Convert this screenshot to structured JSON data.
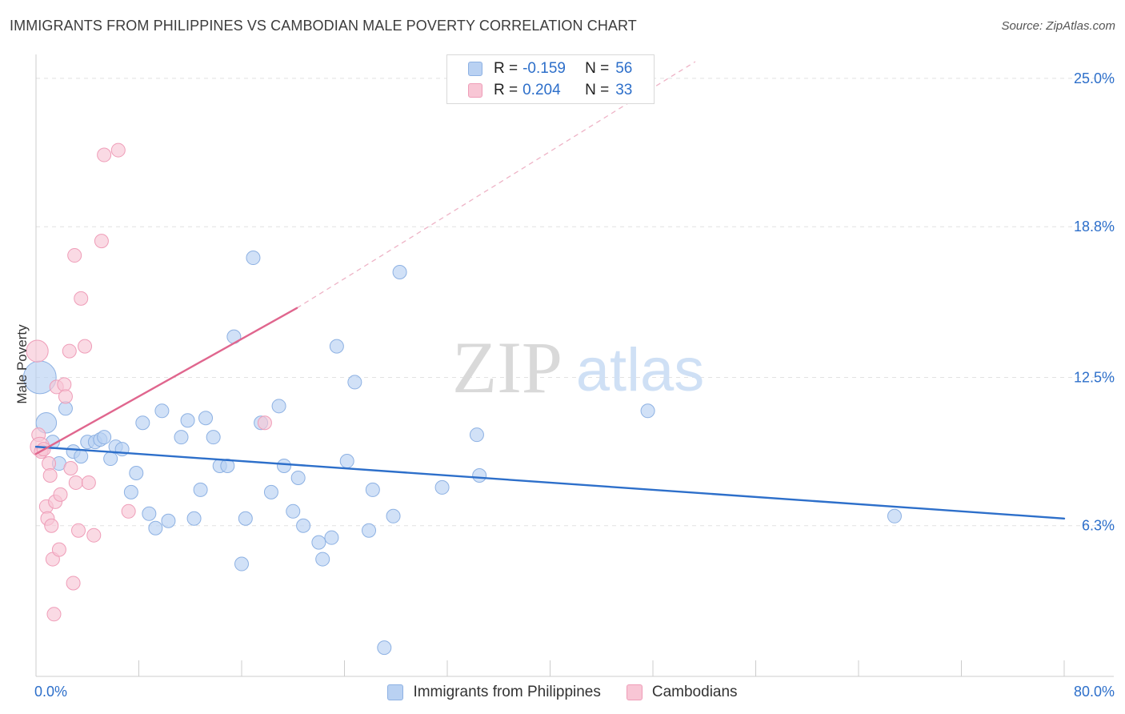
{
  "header": {
    "title": "IMMIGRANTS FROM PHILIPPINES VS CAMBODIAN MALE POVERTY CORRELATION CHART",
    "source": "Source: ZipAtlas.com"
  },
  "watermark": {
    "zip": "ZIP",
    "atlas": "atlas"
  },
  "legend": {
    "r_label": "R =",
    "n_label": "N =",
    "rows": [
      {
        "r": "-0.159",
        "n": "56"
      },
      {
        "r": "0.204",
        "n": "33"
      }
    ]
  },
  "colors": {
    "blue_fill": "#b9d1f2",
    "blue_stroke": "#8db1e3",
    "blue_line": "#2d6fca",
    "pink_fill": "#f8c6d5",
    "pink_stroke": "#ef9db8",
    "pink_line": "#e0668e",
    "axis_label": "#2d6fca",
    "grid": "#e2e2e2"
  },
  "chart_data": {
    "type": "scatter",
    "title": "IMMIGRANTS FROM PHILIPPINES VS CAMBODIAN MALE POVERTY CORRELATION CHART",
    "xlabel": "",
    "ylabel": "Male Poverty",
    "xlim": [
      0,
      80
    ],
    "ylim": [
      0,
      25.7
    ],
    "x_tick_labels": [
      "0.0%",
      "80.0%"
    ],
    "y_ticks": [
      6.3,
      12.5,
      18.8,
      25.0
    ],
    "y_tick_labels": [
      "6.3%",
      "12.5%",
      "18.8%",
      "25.0%"
    ],
    "grid": true,
    "legend_position": "bottom-center",
    "series": [
      {
        "name": "Immigrants from Philippines",
        "r": -0.159,
        "n": 56,
        "trend": {
          "x": [
            0,
            80
          ],
          "y": [
            9.6,
            6.6
          ]
        },
        "points": [
          {
            "x": 0.3,
            "y": 12.5,
            "s": 2.4
          },
          {
            "x": 0.8,
            "y": 10.6,
            "s": 1.5
          },
          {
            "x": 1.3,
            "y": 9.8,
            "s": 1
          },
          {
            "x": 1.8,
            "y": 8.9,
            "s": 1
          },
          {
            "x": 2.3,
            "y": 11.2,
            "s": 1
          },
          {
            "x": 2.9,
            "y": 9.4,
            "s": 1
          },
          {
            "x": 3.5,
            "y": 9.2,
            "s": 1
          },
          {
            "x": 4,
            "y": 9.8,
            "s": 1
          },
          {
            "x": 4.6,
            "y": 9.8,
            "s": 1
          },
          {
            "x": 5,
            "y": 9.9,
            "s": 1
          },
          {
            "x": 5.3,
            "y": 10,
            "s": 1
          },
          {
            "x": 5.8,
            "y": 9.1,
            "s": 1
          },
          {
            "x": 6.2,
            "y": 9.6,
            "s": 1
          },
          {
            "x": 6.7,
            "y": 9.5,
            "s": 1
          },
          {
            "x": 7.4,
            "y": 7.7,
            "s": 1
          },
          {
            "x": 7.8,
            "y": 8.5,
            "s": 1
          },
          {
            "x": 8.3,
            "y": 10.6,
            "s": 1
          },
          {
            "x": 8.8,
            "y": 6.8,
            "s": 1
          },
          {
            "x": 9.3,
            "y": 6.2,
            "s": 1
          },
          {
            "x": 9.8,
            "y": 11.1,
            "s": 1
          },
          {
            "x": 10.3,
            "y": 6.5,
            "s": 1
          },
          {
            "x": 11.3,
            "y": 10,
            "s": 1
          },
          {
            "x": 11.8,
            "y": 10.7,
            "s": 1
          },
          {
            "x": 12.3,
            "y": 6.6,
            "s": 1
          },
          {
            "x": 12.8,
            "y": 7.8,
            "s": 1
          },
          {
            "x": 13.2,
            "y": 10.8,
            "s": 1
          },
          {
            "x": 13.8,
            "y": 10,
            "s": 1
          },
          {
            "x": 14.3,
            "y": 8.8,
            "s": 1
          },
          {
            "x": 14.9,
            "y": 8.8,
            "s": 1
          },
          {
            "x": 15.4,
            "y": 14.2,
            "s": 1
          },
          {
            "x": 16,
            "y": 4.7,
            "s": 1
          },
          {
            "x": 16.3,
            "y": 6.6,
            "s": 1
          },
          {
            "x": 16.9,
            "y": 17.5,
            "s": 1
          },
          {
            "x": 17.5,
            "y": 10.6,
            "s": 1
          },
          {
            "x": 18.3,
            "y": 7.7,
            "s": 1
          },
          {
            "x": 18.9,
            "y": 11.3,
            "s": 1
          },
          {
            "x": 19.3,
            "y": 8.8,
            "s": 1
          },
          {
            "x": 20,
            "y": 6.9,
            "s": 1
          },
          {
            "x": 20.4,
            "y": 8.3,
            "s": 1
          },
          {
            "x": 20.8,
            "y": 6.3,
            "s": 1
          },
          {
            "x": 22,
            "y": 5.6,
            "s": 1
          },
          {
            "x": 22.3,
            "y": 4.9,
            "s": 1
          },
          {
            "x": 23,
            "y": 5.8,
            "s": 1
          },
          {
            "x": 23.4,
            "y": 13.8,
            "s": 1
          },
          {
            "x": 24.2,
            "y": 9,
            "s": 1
          },
          {
            "x": 24.8,
            "y": 12.3,
            "s": 1
          },
          {
            "x": 25.9,
            "y": 6.1,
            "s": 1
          },
          {
            "x": 26.2,
            "y": 7.8,
            "s": 1
          },
          {
            "x": 27.1,
            "y": 1.2,
            "s": 1
          },
          {
            "x": 27.8,
            "y": 6.7,
            "s": 1
          },
          {
            "x": 28.3,
            "y": 16.9,
            "s": 1
          },
          {
            "x": 31.6,
            "y": 7.9,
            "s": 1
          },
          {
            "x": 34.3,
            "y": 10.1,
            "s": 1
          },
          {
            "x": 34.5,
            "y": 8.4,
            "s": 1
          },
          {
            "x": 47.6,
            "y": 11.1,
            "s": 1
          },
          {
            "x": 66.8,
            "y": 6.7,
            "s": 1
          }
        ]
      },
      {
        "name": "Cambodians",
        "r": 0.204,
        "n": 33,
        "trend": {
          "x": [
            0,
            20.3
          ],
          "y": [
            9.3,
            15.4
          ],
          "dashed_to": {
            "x": 51.3,
            "y": 25.7
          }
        },
        "points": [
          {
            "x": 0.1,
            "y": 13.6,
            "s": 1.6
          },
          {
            "x": 0.2,
            "y": 10.1,
            "s": 1
          },
          {
            "x": 0.3,
            "y": 9.6,
            "s": 1.4
          },
          {
            "x": 0.4,
            "y": 9.4,
            "s": 1
          },
          {
            "x": 0.6,
            "y": 9.5,
            "s": 1
          },
          {
            "x": 0.8,
            "y": 7.1,
            "s": 1
          },
          {
            "x": 0.9,
            "y": 6.6,
            "s": 1
          },
          {
            "x": 1,
            "y": 8.9,
            "s": 1
          },
          {
            "x": 1.1,
            "y": 8.4,
            "s": 1
          },
          {
            "x": 1.2,
            "y": 6.3,
            "s": 1
          },
          {
            "x": 1.3,
            "y": 4.9,
            "s": 1
          },
          {
            "x": 1.4,
            "y": 2.6,
            "s": 1
          },
          {
            "x": 1.5,
            "y": 7.3,
            "s": 1
          },
          {
            "x": 1.6,
            "y": 12.1,
            "s": 1
          },
          {
            "x": 1.8,
            "y": 5.3,
            "s": 1
          },
          {
            "x": 1.9,
            "y": 7.6,
            "s": 1
          },
          {
            "x": 2.2,
            "y": 12.2,
            "s": 1
          },
          {
            "x": 2.3,
            "y": 11.7,
            "s": 1
          },
          {
            "x": 2.6,
            "y": 13.6,
            "s": 1
          },
          {
            "x": 2.7,
            "y": 8.7,
            "s": 1
          },
          {
            "x": 2.9,
            "y": 3.9,
            "s": 1
          },
          {
            "x": 3,
            "y": 17.6,
            "s": 1
          },
          {
            "x": 3.1,
            "y": 8.1,
            "s": 1
          },
          {
            "x": 3.3,
            "y": 6.1,
            "s": 1
          },
          {
            "x": 3.5,
            "y": 15.8,
            "s": 1
          },
          {
            "x": 3.8,
            "y": 13.8,
            "s": 1
          },
          {
            "x": 4.1,
            "y": 8.1,
            "s": 1
          },
          {
            "x": 4.5,
            "y": 5.9,
            "s": 1
          },
          {
            "x": 5.1,
            "y": 18.2,
            "s": 1
          },
          {
            "x": 5.3,
            "y": 21.8,
            "s": 1
          },
          {
            "x": 6.4,
            "y": 22,
            "s": 1
          },
          {
            "x": 7.2,
            "y": 6.9,
            "s": 1
          },
          {
            "x": 17.8,
            "y": 10.6,
            "s": 1
          }
        ]
      }
    ]
  }
}
